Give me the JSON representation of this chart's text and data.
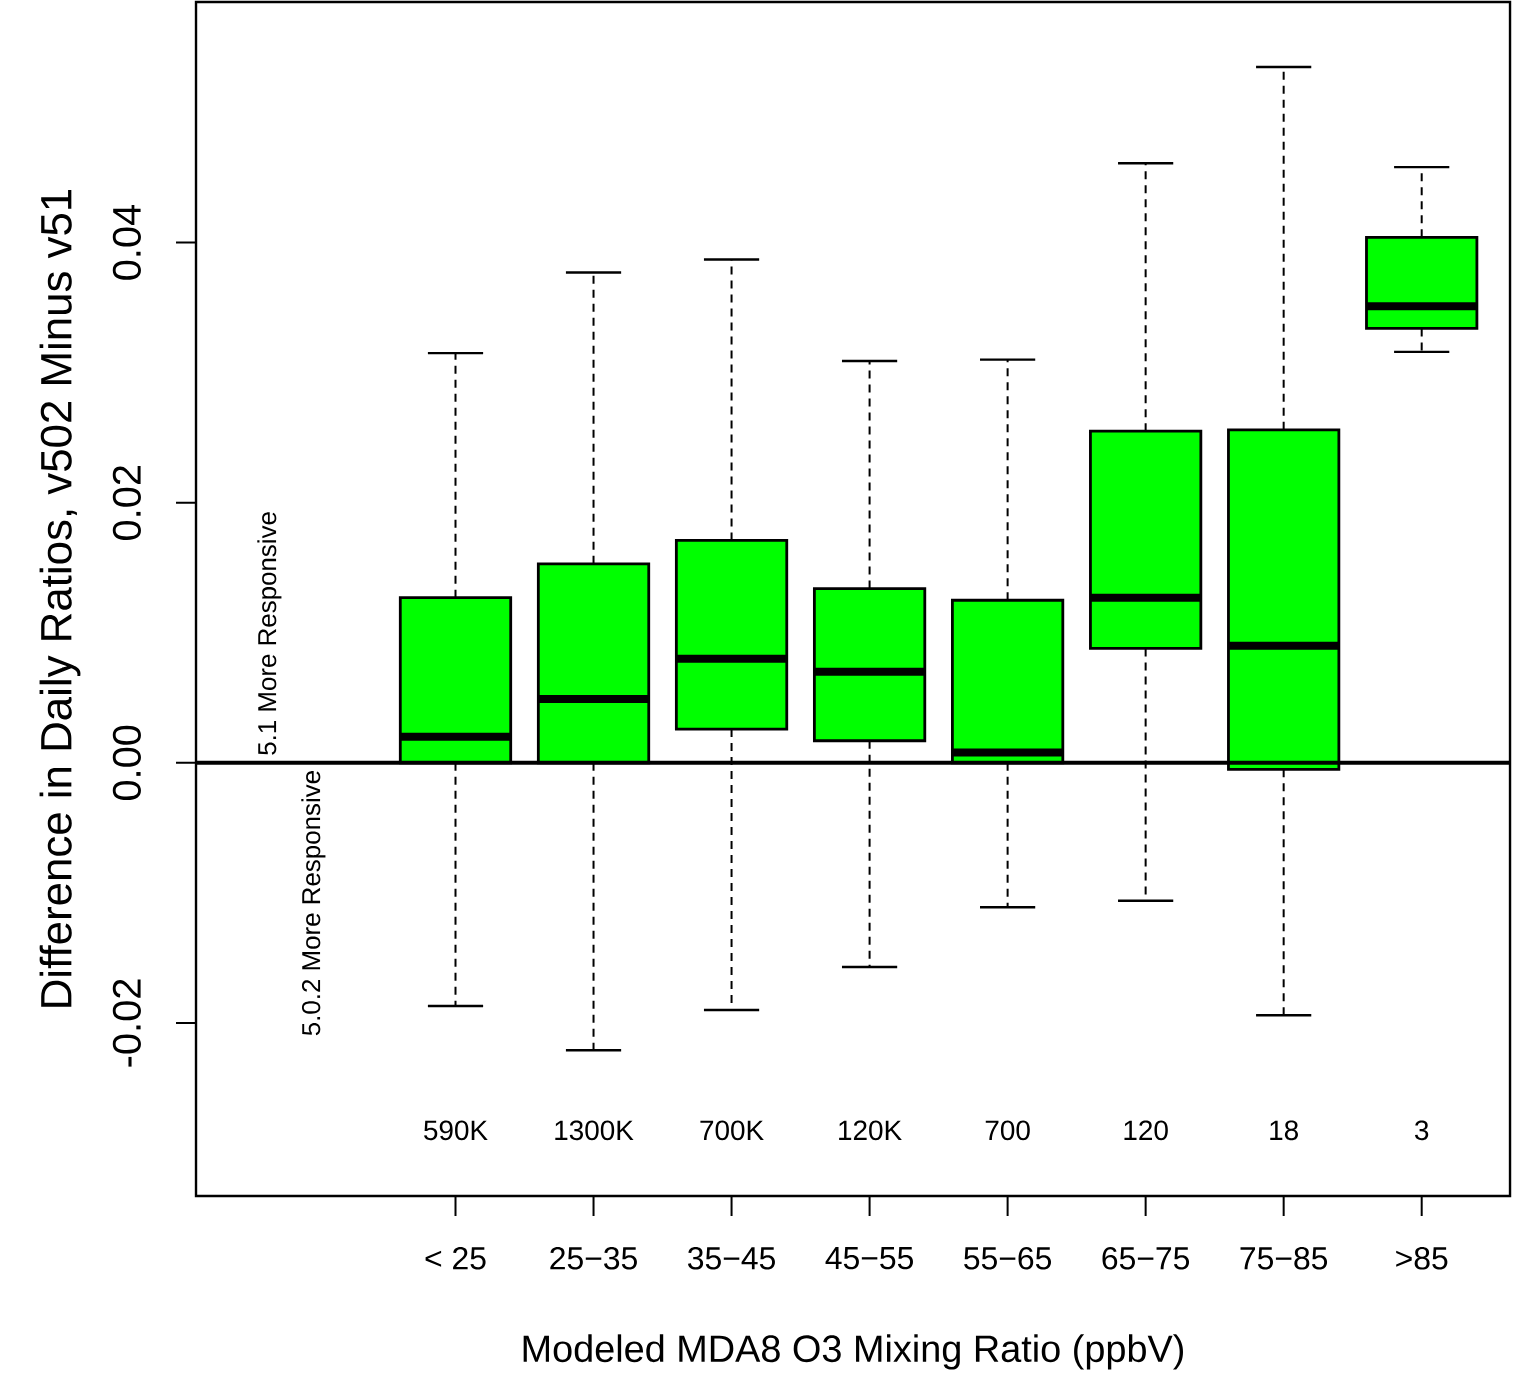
{
  "chart_data": {
    "type": "box",
    "ylabel": "Difference in Daily Ratios, v502 Minus v51",
    "xlabel": "Modeled MDA8 O3 Mixing Ratio (ppbV)",
    "categories": [
      "< 25",
      "25−35",
      "35−45",
      "45−55",
      "55−65",
      "65−75",
      "75−85",
      ">85"
    ],
    "series": [
      {
        "color": "#00ff00",
        "boxes": [
          {
            "low": -0.0187,
            "q1": 0.0,
            "median": 0.002,
            "q3": 0.0127,
            "high": 0.0315
          },
          {
            "low": -0.0221,
            "q1": 0.0,
            "median": 0.0049,
            "q3": 0.0153,
            "high": 0.0377
          },
          {
            "low": -0.019,
            "q1": 0.0026,
            "median": 0.008,
            "q3": 0.0171,
            "high": 0.0387
          },
          {
            "low": -0.0157,
            "q1": 0.0017,
            "median": 0.007,
            "q3": 0.0134,
            "high": 0.0309
          },
          {
            "low": -0.0111,
            "q1": 0.0,
            "median": 0.0008,
            "q3": 0.0125,
            "high": 0.031
          },
          {
            "low": -0.0106,
            "q1": 0.0088,
            "median": 0.0127,
            "q3": 0.0255,
            "high": 0.0461
          },
          {
            "low": -0.0194,
            "q1": -0.0005,
            "median": 0.009,
            "q3": 0.0256,
            "high": 0.0535
          },
          {
            "low": 0.0316,
            "q1": 0.0334,
            "median": 0.0351,
            "q3": 0.0404,
            "high": 0.0458
          }
        ]
      }
    ],
    "ylim": [
      -0.0333,
      0.0585
    ],
    "yticks": [
      -0.02,
      {
        "value": 0,
        "label": "0.00"
      },
      0.02,
      0.04
    ],
    "ref_lines": [
      {
        "axis": "y",
        "value": 0,
        "color": "#000000"
      }
    ],
    "annotations": [
      "5.1 More Responsive",
      "5.0.2 More Responsive",
      "590K",
      "1300K",
      "700K",
      "120K",
      "700",
      "120",
      "18",
      "3"
    ]
  }
}
